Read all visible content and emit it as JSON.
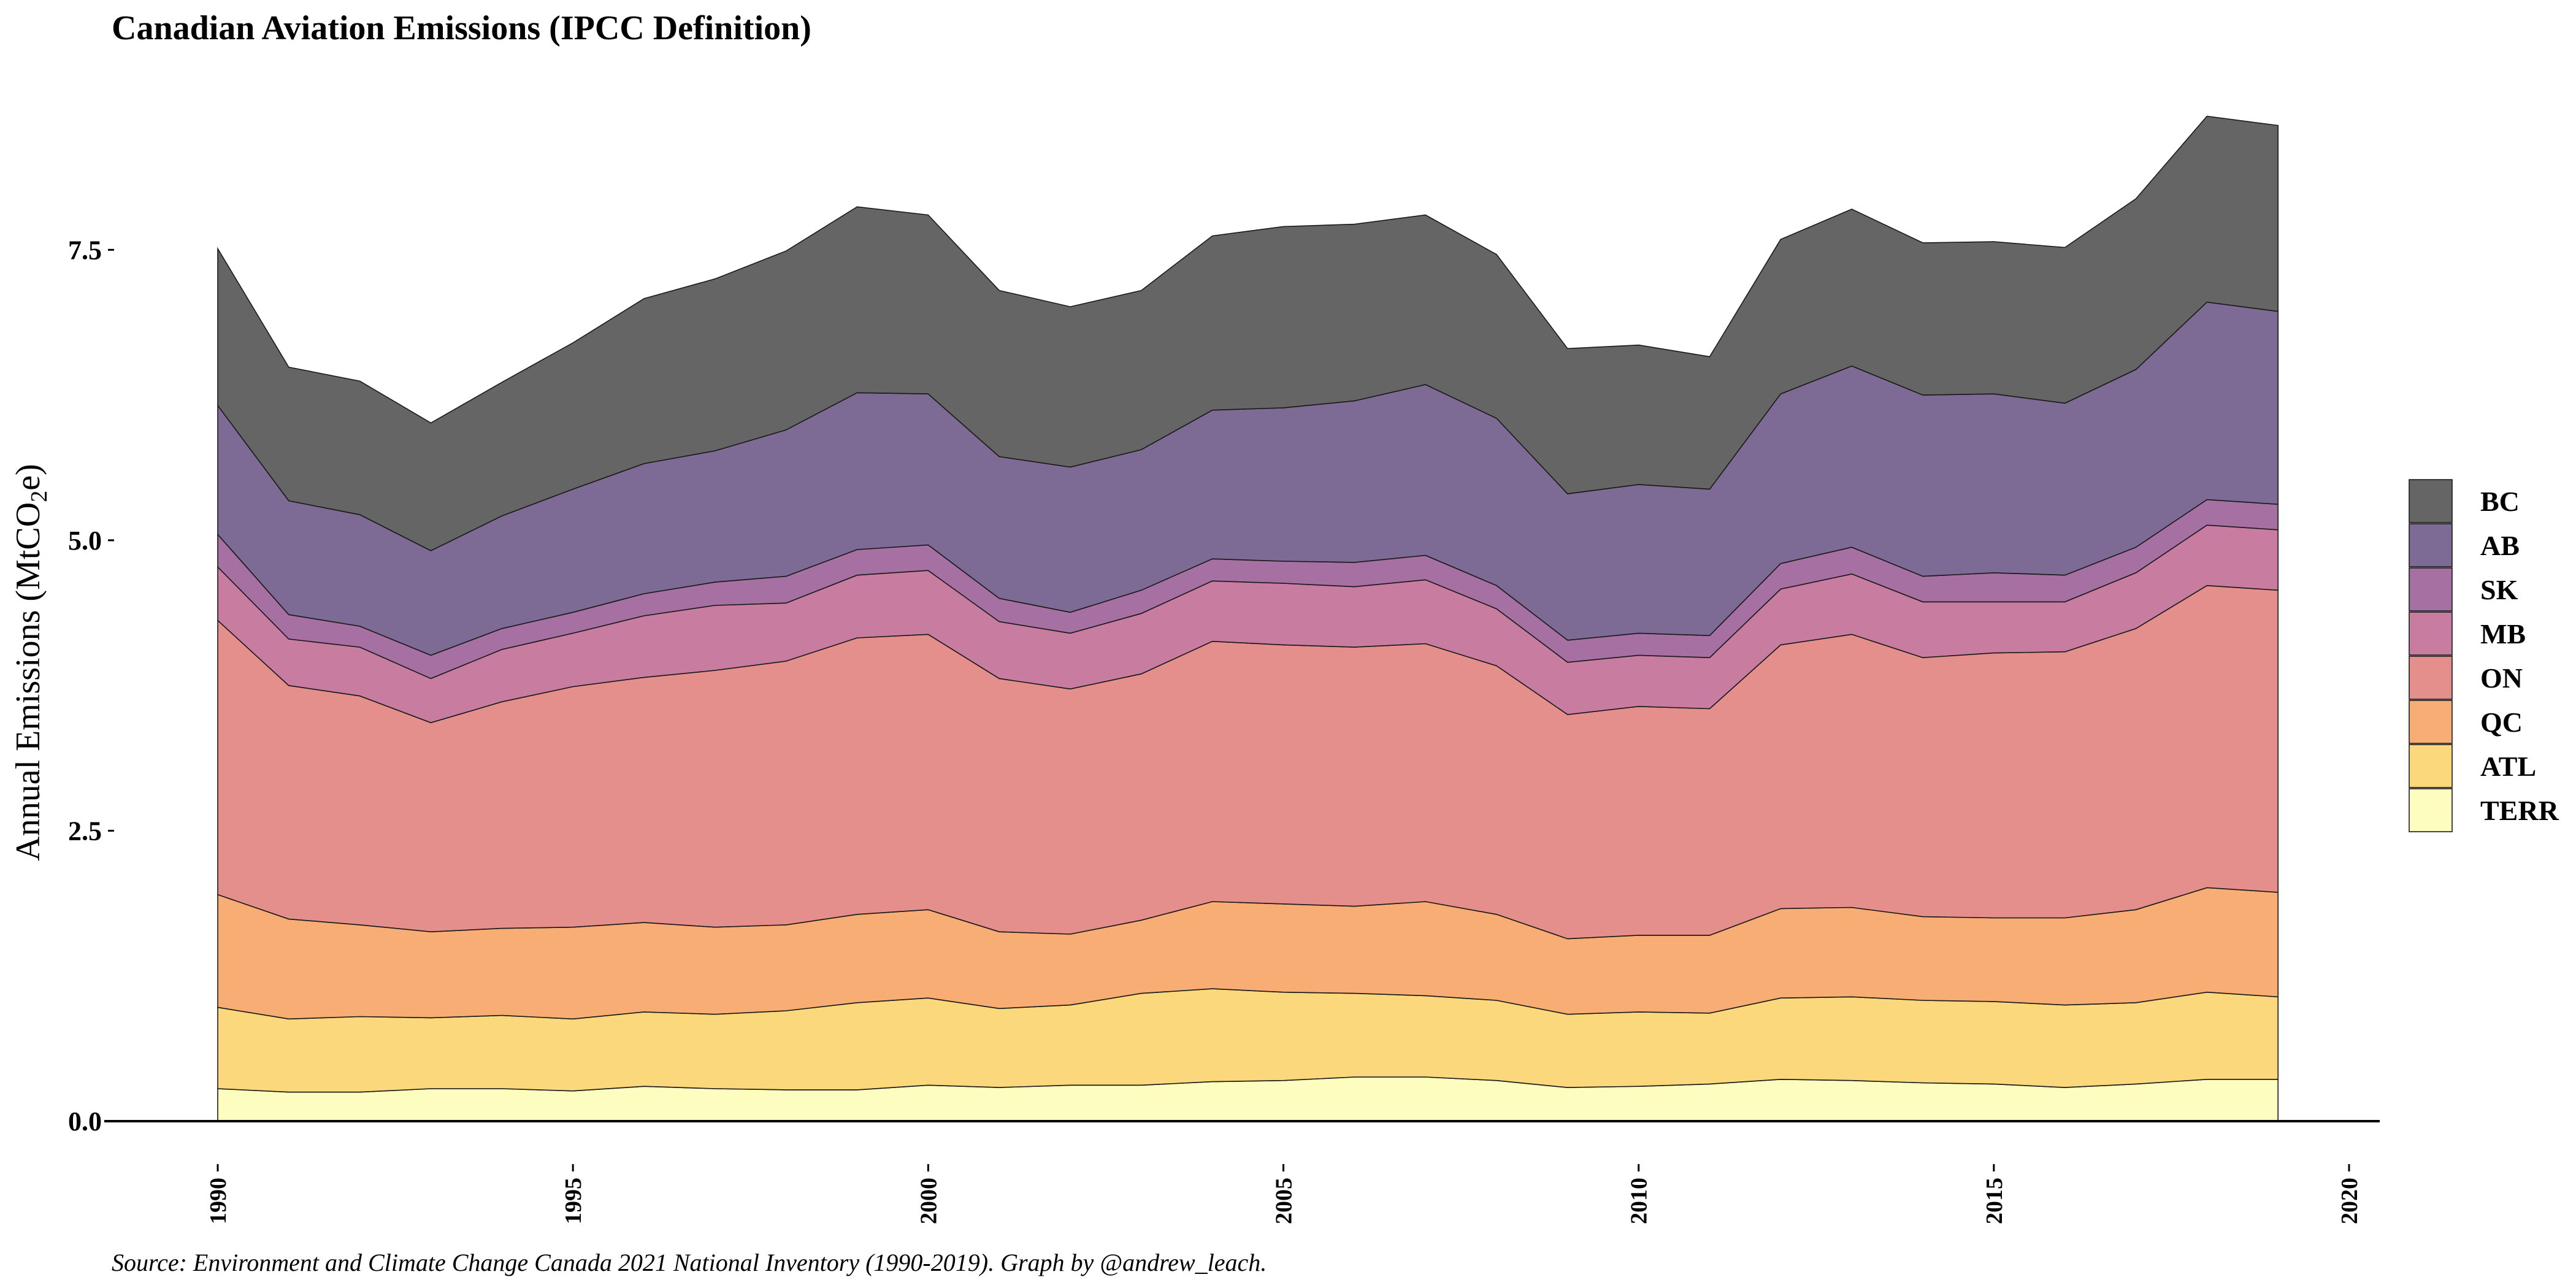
{
  "chart_data": {
    "type": "area",
    "stacked": true,
    "title": "Canadian Aviation Emissions (IPCC Definition)",
    "ylabel_main": "Annual Emissions (MtCO",
    "ylabel_sub": "2",
    "ylabel_tail": "e)",
    "xlabel": "",
    "xlim": [
      1990,
      2020
    ],
    "ylim": [
      0,
      8.7
    ],
    "x_ticks": [
      1990,
      1995,
      2000,
      2005,
      2010,
      2015,
      2020
    ],
    "y_ticks": [
      "0.0",
      "2.5",
      "5.0",
      "7.5"
    ],
    "y_tick_values": [
      0,
      2.5,
      5.0,
      7.5
    ],
    "grid": false,
    "legend_position": "right",
    "caption": "Source: Environment and Climate Change Canada 2021 National Inventory (1990-2019). Graph by @andrew_leach.",
    "x": [
      1990,
      1991,
      1992,
      1993,
      1994,
      1995,
      1996,
      1997,
      1998,
      1999,
      2000,
      2001,
      2002,
      2003,
      2004,
      2005,
      2006,
      2007,
      2008,
      2009,
      2010,
      2011,
      2012,
      2013,
      2014,
      2015,
      2016,
      2017,
      2018,
      2019
    ],
    "series": [
      {
        "name": "TERR",
        "color": "#fcfdbf",
        "values": [
          0.28,
          0.25,
          0.25,
          0.28,
          0.28,
          0.26,
          0.3,
          0.28,
          0.27,
          0.27,
          0.31,
          0.29,
          0.31,
          0.31,
          0.34,
          0.35,
          0.38,
          0.38,
          0.35,
          0.29,
          0.3,
          0.32,
          0.36,
          0.35,
          0.33,
          0.32,
          0.29,
          0.32,
          0.36,
          0.36
        ]
      },
      {
        "name": "ATL",
        "color": "#fcd87c",
        "values": [
          0.7,
          0.63,
          0.65,
          0.61,
          0.63,
          0.62,
          0.64,
          0.64,
          0.68,
          0.75,
          0.75,
          0.68,
          0.69,
          0.79,
          0.8,
          0.76,
          0.72,
          0.7,
          0.69,
          0.63,
          0.64,
          0.61,
          0.7,
          0.72,
          0.71,
          0.71,
          0.71,
          0.7,
          0.75,
          0.71
        ]
      },
      {
        "name": "QC",
        "color": "#f7ad73",
        "values": [
          0.97,
          0.86,
          0.79,
          0.74,
          0.75,
          0.79,
          0.77,
          0.75,
          0.74,
          0.76,
          0.76,
          0.66,
          0.61,
          0.63,
          0.75,
          0.76,
          0.75,
          0.81,
          0.74,
          0.65,
          0.66,
          0.67,
          0.77,
          0.77,
          0.72,
          0.72,
          0.75,
          0.8,
          0.9,
          0.9
        ]
      },
      {
        "name": "ON",
        "color": "#e58f8c",
        "values": [
          2.36,
          2.01,
          1.97,
          1.8,
          1.95,
          2.07,
          2.11,
          2.21,
          2.27,
          2.38,
          2.37,
          2.18,
          2.11,
          2.12,
          2.24,
          2.23,
          2.23,
          2.22,
          2.14,
          1.93,
          1.97,
          1.95,
          2.27,
          2.35,
          2.23,
          2.28,
          2.29,
          2.42,
          2.6,
          2.6
        ]
      },
      {
        "name": "MB",
        "color": "#c87da0",
        "values": [
          0.46,
          0.4,
          0.42,
          0.38,
          0.45,
          0.46,
          0.53,
          0.56,
          0.5,
          0.54,
          0.55,
          0.49,
          0.48,
          0.52,
          0.52,
          0.53,
          0.52,
          0.55,
          0.49,
          0.45,
          0.44,
          0.44,
          0.48,
          0.52,
          0.48,
          0.44,
          0.43,
          0.48,
          0.52,
          0.52
        ]
      },
      {
        "name": "SK",
        "color": "#a670a2",
        "values": [
          0.28,
          0.21,
          0.18,
          0.2,
          0.18,
          0.18,
          0.19,
          0.2,
          0.23,
          0.22,
          0.22,
          0.2,
          0.18,
          0.2,
          0.19,
          0.19,
          0.21,
          0.21,
          0.2,
          0.19,
          0.19,
          0.19,
          0.22,
          0.23,
          0.22,
          0.25,
          0.23,
          0.22,
          0.22,
          0.22
        ]
      },
      {
        "name": "AB",
        "color": "#7e6b95",
        "values": [
          1.11,
          0.98,
          0.96,
          0.9,
          0.97,
          1.06,
          1.12,
          1.13,
          1.26,
          1.35,
          1.3,
          1.22,
          1.25,
          1.21,
          1.28,
          1.32,
          1.39,
          1.47,
          1.44,
          1.26,
          1.28,
          1.26,
          1.46,
          1.56,
          1.56,
          1.54,
          1.48,
          1.53,
          1.7,
          1.66
        ]
      },
      {
        "name": "BC",
        "color": "#656565",
        "values": [
          1.35,
          1.15,
          1.15,
          1.1,
          1.15,
          1.26,
          1.42,
          1.48,
          1.54,
          1.6,
          1.54,
          1.43,
          1.38,
          1.37,
          1.5,
          1.56,
          1.52,
          1.46,
          1.41,
          1.25,
          1.2,
          1.14,
          1.33,
          1.35,
          1.31,
          1.31,
          1.34,
          1.47,
          1.6,
          1.6
        ]
      }
    ]
  }
}
